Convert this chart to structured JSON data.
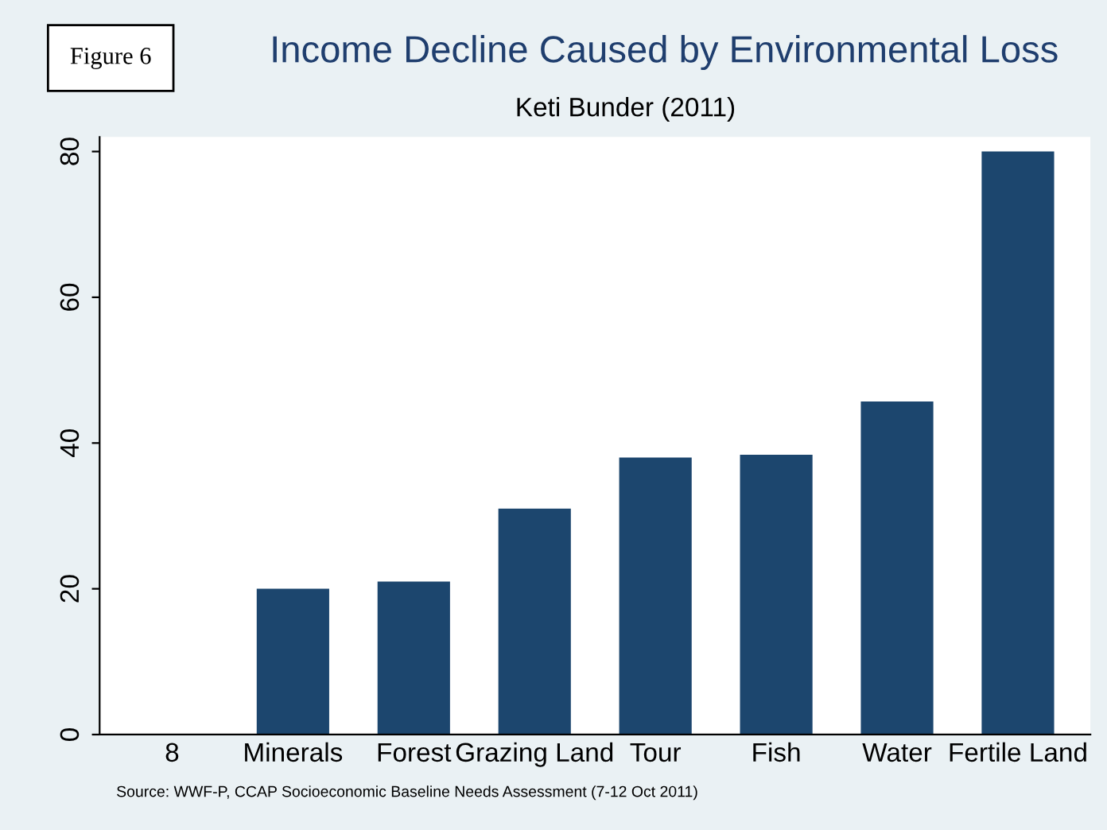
{
  "chart_data": {
    "type": "bar",
    "title": "Income Decline Caused by Environmental Loss",
    "subtitle": "Keti Bunder (2011)",
    "categories": [
      "8",
      "Minerals",
      "Forest",
      "Grazing Land",
      "Tour",
      "Fish",
      "Water",
      "Fertile Land"
    ],
    "values": [
      null,
      20,
      21,
      31,
      38,
      38.4,
      45.7,
      80
    ],
    "color": "#1c466e",
    "ylim": [
      0,
      82
    ],
    "yticks": [
      0,
      20,
      40,
      60,
      80
    ],
    "grid": false,
    "legend": false,
    "annotations": [
      "Figure 6",
      "Source: WWF-P, CCAP Socioeconomic Baseline Needs Assessment (7-12 Oct 2011)"
    ]
  }
}
